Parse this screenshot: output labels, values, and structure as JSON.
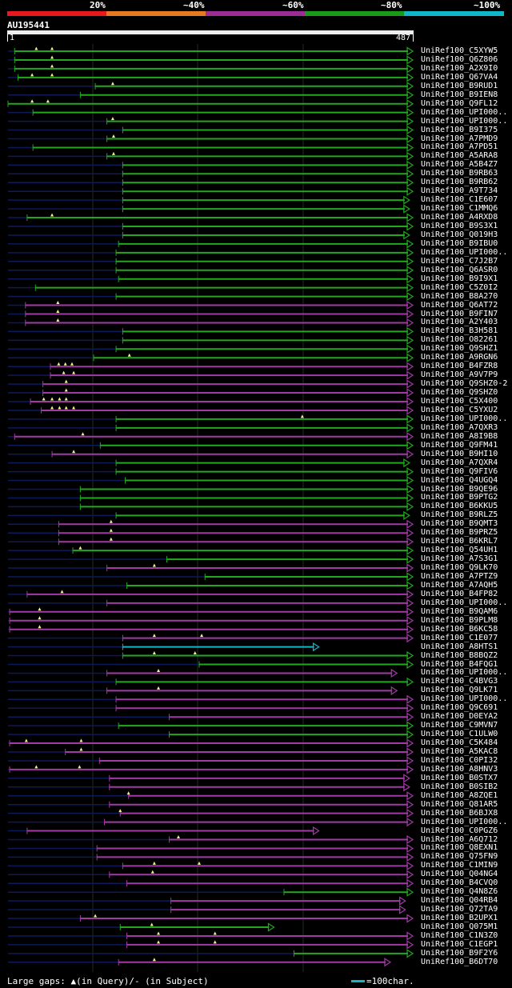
{
  "query": {
    "id": "AU195441",
    "start_label": "1",
    "end_label": "487",
    "length": 487
  },
  "identity_scale": [
    {
      "label": "20%",
      "color": "#e8191e"
    },
    {
      "label": "~40%",
      "color": "#e67a20"
    },
    {
      "label": "~60%",
      "color": "#9b2d95"
    },
    {
      "label": "~80%",
      "color": "#1a9a1a"
    },
    {
      "label": "~100%",
      "color": "#0fb8c8"
    }
  ],
  "footer": {
    "gaps_text": "Large gaps: ▲(in Query)/- (in Subject)",
    "legend_text": "=100char."
  },
  "chart_data": {
    "type": "alignment",
    "x_range": [
      1,
      487
    ],
    "rows": [
      {
        "id": "UniRef100_C5XYW5",
        "start": 9,
        "end": 487,
        "color": "green",
        "gaps": [
          35,
          54
        ]
      },
      {
        "id": "UniRef100_Q6Z806",
        "start": 9,
        "end": 487,
        "color": "green",
        "gaps": [
          54
        ]
      },
      {
        "id": "UniRef100_A2X9I0",
        "start": 9,
        "end": 487,
        "color": "green",
        "gaps": [
          54
        ]
      },
      {
        "id": "UniRef100_Q67VA4",
        "start": 13,
        "end": 487,
        "color": "green",
        "gaps": [
          30,
          54
        ]
      },
      {
        "id": "UniRef100_B9RUD1",
        "start": 106,
        "end": 487,
        "color": "green",
        "gaps": [
          127
        ]
      },
      {
        "id": "UniRef100_B9IEN8",
        "start": 88,
        "end": 487,
        "color": "green",
        "gaps": []
      },
      {
        "id": "UniRef100_Q9FL12",
        "start": 1,
        "end": 487,
        "color": "green",
        "gaps": [
          30,
          49
        ]
      },
      {
        "id": "UniRef100_UPI000..",
        "start": 31,
        "end": 487,
        "color": "green",
        "gaps": []
      },
      {
        "id": "UniRef100_UPI000..",
        "start": 120,
        "end": 487,
        "color": "green",
        "gaps": [
          127
        ]
      },
      {
        "id": "UniRef100_B9I375",
        "start": 139,
        "end": 487,
        "color": "green",
        "gaps": []
      },
      {
        "id": "UniRef100_A7PMD9",
        "start": 120,
        "end": 487,
        "color": "green",
        "gaps": [
          128
        ]
      },
      {
        "id": "UniRef100_A7PD51",
        "start": 31,
        "end": 487,
        "color": "green",
        "gaps": []
      },
      {
        "id": "UniRef100_A5ARA8",
        "start": 120,
        "end": 487,
        "color": "green",
        "gaps": [
          128
        ]
      },
      {
        "id": "UniRef100_A5B4Z7",
        "start": 139,
        "end": 487,
        "color": "green",
        "gaps": []
      },
      {
        "id": "UniRef100_B9RB63",
        "start": 139,
        "end": 487,
        "color": "green",
        "gaps": []
      },
      {
        "id": "UniRef100_B9RB62",
        "start": 139,
        "end": 487,
        "color": "green",
        "gaps": []
      },
      {
        "id": "UniRef100_A9T734",
        "start": 139,
        "end": 487,
        "color": "green",
        "gaps": []
      },
      {
        "id": "UniRef100_C1E607",
        "start": 139,
        "end": 483,
        "color": "green",
        "gaps": []
      },
      {
        "id": "UniRef100_C1MMQ6",
        "start": 139,
        "end": 483,
        "color": "green",
        "gaps": []
      },
      {
        "id": "UniRef100_A4RXD8",
        "start": 24,
        "end": 487,
        "color": "green",
        "gaps": [
          54
        ]
      },
      {
        "id": "UniRef100_B9S3X1",
        "start": 139,
        "end": 487,
        "color": "green",
        "gaps": []
      },
      {
        "id": "UniRef100_Q019H3",
        "start": 139,
        "end": 483,
        "color": "green",
        "gaps": []
      },
      {
        "id": "UniRef100_B9IBU0",
        "start": 134,
        "end": 487,
        "color": "green",
        "gaps": []
      },
      {
        "id": "UniRef100_UPI000..",
        "start": 131,
        "end": 487,
        "color": "green",
        "gaps": []
      },
      {
        "id": "UniRef100_C7J2B7",
        "start": 131,
        "end": 487,
        "color": "green",
        "gaps": []
      },
      {
        "id": "UniRef100_Q6ASR0",
        "start": 131,
        "end": 487,
        "color": "green",
        "gaps": []
      },
      {
        "id": "UniRef100_B9I9X1",
        "start": 134,
        "end": 487,
        "color": "green",
        "gaps": []
      },
      {
        "id": "UniRef100_C5Z0I2",
        "start": 34,
        "end": 487,
        "color": "green",
        "gaps": []
      },
      {
        "id": "UniRef100_B8A270",
        "start": 131,
        "end": 487,
        "color": "green",
        "gaps": []
      },
      {
        "id": "UniRef100_Q6AT72",
        "start": 22,
        "end": 487,
        "color": "purple",
        "gaps": [
          61
        ]
      },
      {
        "id": "UniRef100_B9FIN7",
        "start": 22,
        "end": 487,
        "color": "purple",
        "gaps": [
          61
        ]
      },
      {
        "id": "UniRef100_A2Y403",
        "start": 22,
        "end": 487,
        "color": "purple",
        "gaps": [
          61
        ]
      },
      {
        "id": "UniRef100_B3H581",
        "start": 139,
        "end": 487,
        "color": "green",
        "gaps": []
      },
      {
        "id": "UniRef100_O82261",
        "start": 139,
        "end": 487,
        "color": "green",
        "gaps": []
      },
      {
        "id": "UniRef100_Q9SHZ1",
        "start": 131,
        "end": 487,
        "color": "green",
        "gaps": []
      },
      {
        "id": "UniRef100_A9RGN6",
        "start": 104,
        "end": 487,
        "color": "green",
        "gaps": [
          147
        ]
      },
      {
        "id": "UniRef100_B4FZR8",
        "start": 52,
        "end": 487,
        "color": "purple",
        "gaps": [
          62,
          70,
          78
        ]
      },
      {
        "id": "UniRef100_A9V7P9",
        "start": 52,
        "end": 487,
        "color": "purple",
        "gaps": [
          68,
          80
        ]
      },
      {
        "id": "UniRef100_Q9SHZ0-2",
        "start": 43,
        "end": 487,
        "color": "purple",
        "gaps": [
          71
        ]
      },
      {
        "id": "UniRef100_Q9SHZ0",
        "start": 43,
        "end": 487,
        "color": "purple",
        "gaps": [
          71
        ]
      },
      {
        "id": "UniRef100_C5X400",
        "start": 28,
        "end": 487,
        "color": "purple",
        "gaps": [
          44,
          54,
          63,
          71
        ]
      },
      {
        "id": "UniRef100_C5YXU2",
        "start": 41,
        "end": 487,
        "color": "purple",
        "gaps": [
          54,
          63,
          71,
          80
        ]
      },
      {
        "id": "UniRef100_UPI000..",
        "start": 131,
        "end": 487,
        "color": "green",
        "gaps": [
          355
        ]
      },
      {
        "id": "UniRef100_A7QXR3",
        "start": 131,
        "end": 487,
        "color": "green",
        "gaps": []
      },
      {
        "id": "UniRef100_A8I9B8",
        "start": 9,
        "end": 487,
        "color": "purple",
        "gaps": [
          91
        ]
      },
      {
        "id": "UniRef100_Q9FM41",
        "start": 112,
        "end": 487,
        "color": "green",
        "gaps": []
      },
      {
        "id": "UniRef100_B9HI10",
        "start": 54,
        "end": 487,
        "color": "purple",
        "gaps": [
          80
        ]
      },
      {
        "id": "UniRef100_A7QXR4",
        "start": 131,
        "end": 483,
        "color": "green",
        "gaps": []
      },
      {
        "id": "UniRef100_Q9FIV6",
        "start": 131,
        "end": 487,
        "color": "green",
        "gaps": []
      },
      {
        "id": "UniRef100_Q4UGQ4",
        "start": 142,
        "end": 487,
        "color": "green",
        "gaps": []
      },
      {
        "id": "UniRef100_B9QE96",
        "start": 88,
        "end": 487,
        "color": "green",
        "gaps": []
      },
      {
        "id": "UniRef100_B9PTG2",
        "start": 88,
        "end": 487,
        "color": "green",
        "gaps": []
      },
      {
        "id": "UniRef100_B6KKU5",
        "start": 88,
        "end": 487,
        "color": "green",
        "gaps": []
      },
      {
        "id": "UniRef100_B9RLZ5",
        "start": 131,
        "end": 483,
        "color": "green",
        "gaps": []
      },
      {
        "id": "UniRef100_B9QMT3",
        "start": 62,
        "end": 487,
        "color": "purple",
        "gaps": [
          125
        ]
      },
      {
        "id": "UniRef100_B9PRZ5",
        "start": 62,
        "end": 487,
        "color": "purple",
        "gaps": [
          125
        ]
      },
      {
        "id": "UniRef100_B6KRL7",
        "start": 62,
        "end": 487,
        "color": "purple",
        "gaps": [
          125
        ]
      },
      {
        "id": "UniRef100_Q54UH1",
        "start": 79,
        "end": 487,
        "color": "green",
        "gaps": [
          88
        ]
      },
      {
        "id": "UniRef100_A7S3G1",
        "start": 192,
        "end": 487,
        "color": "green",
        "gaps": []
      },
      {
        "id": "UniRef100_Q9LK70",
        "start": 120,
        "end": 487,
        "color": "purple",
        "gaps": [
          177
        ]
      },
      {
        "id": "UniRef100_A7PTZ9",
        "start": 238,
        "end": 487,
        "color": "green",
        "gaps": []
      },
      {
        "id": "UniRef100_A7AQH5",
        "start": 144,
        "end": 487,
        "color": "green",
        "gaps": []
      },
      {
        "id": "UniRef100_B4FP82",
        "start": 24,
        "end": 487,
        "color": "purple",
        "gaps": [
          66
        ]
      },
      {
        "id": "UniRef100_UPI000..",
        "start": 120,
        "end": 487,
        "color": "purple",
        "gaps": []
      },
      {
        "id": "UniRef100_B9QAM6",
        "start": 3,
        "end": 487,
        "color": "purple",
        "gaps": [
          39
        ]
      },
      {
        "id": "UniRef100_B9PLM8",
        "start": 3,
        "end": 487,
        "color": "purple",
        "gaps": [
          39
        ]
      },
      {
        "id": "UniRef100_B6KC58",
        "start": 3,
        "end": 487,
        "color": "purple",
        "gaps": [
          39
        ]
      },
      {
        "id": "UniRef100_C1E077",
        "start": 139,
        "end": 487,
        "color": "purple",
        "gaps": [
          177,
          234
        ]
      },
      {
        "id": "UniRef100_A8HTS1",
        "start": 139,
        "end": 374,
        "color": "cyan",
        "gaps": []
      },
      {
        "id": "UniRef100_B8BQZ2",
        "start": 139,
        "end": 487,
        "color": "green",
        "gaps": [
          177,
          226
        ]
      },
      {
        "id": "UniRef100_B4FQG1",
        "start": 231,
        "end": 487,
        "color": "green",
        "gaps": []
      },
      {
        "id": "UniRef100_UPI000..",
        "start": 120,
        "end": 468,
        "color": "purple",
        "gaps": [
          182
        ]
      },
      {
        "id": "UniRef100_C4BVG3",
        "start": 131,
        "end": 487,
        "color": "green",
        "gaps": []
      },
      {
        "id": "UniRef100_Q9LK71",
        "start": 120,
        "end": 468,
        "color": "purple",
        "gaps": [
          182
        ]
      },
      {
        "id": "UniRef100_UPI000..",
        "start": 131,
        "end": 487,
        "color": "purple",
        "gaps": []
      },
      {
        "id": "UniRef100_Q9C691",
        "start": 131,
        "end": 487,
        "color": "purple",
        "gaps": []
      },
      {
        "id": "UniRef100_D0EYA2",
        "start": 195,
        "end": 487,
        "color": "purple",
        "gaps": []
      },
      {
        "id": "UniRef100_C9MVN7",
        "start": 134,
        "end": 487,
        "color": "green",
        "gaps": []
      },
      {
        "id": "UniRef100_C1ULW0",
        "start": 195,
        "end": 487,
        "color": "green",
        "gaps": []
      },
      {
        "id": "UniRef100_C5K484",
        "start": 3,
        "end": 487,
        "color": "purple",
        "gaps": [
          23,
          89
        ]
      },
      {
        "id": "UniRef100_A5KAC8",
        "start": 70,
        "end": 487,
        "color": "purple",
        "gaps": [
          89
        ]
      },
      {
        "id": "UniRef100_C0PI32",
        "start": 111,
        "end": 487,
        "color": "purple",
        "gaps": []
      },
      {
        "id": "UniRef100_A8HNV3",
        "start": 3,
        "end": 487,
        "color": "purple",
        "gaps": [
          35,
          87
        ]
      },
      {
        "id": "UniRef100_B0STX7",
        "start": 123,
        "end": 483,
        "color": "purple",
        "gaps": []
      },
      {
        "id": "UniRef100_B0SIB2",
        "start": 123,
        "end": 483,
        "color": "purple",
        "gaps": []
      },
      {
        "id": "UniRef100_A8ZQE1",
        "start": 146,
        "end": 487,
        "color": "purple",
        "gaps": [
          146
        ]
      },
      {
        "id": "UniRef100_Q81AR5",
        "start": 123,
        "end": 487,
        "color": "purple",
        "gaps": []
      },
      {
        "id": "UniRef100_B6BJX8",
        "start": 136,
        "end": 487,
        "color": "purple",
        "gaps": [
          136
        ]
      },
      {
        "id": "UniRef100_UPI000..",
        "start": 117,
        "end": 487,
        "color": "purple",
        "gaps": []
      },
      {
        "id": "UniRef100_C0PGZ6",
        "start": 24,
        "end": 374,
        "color": "purple",
        "gaps": []
      },
      {
        "id": "UniRef100_A6Q712",
        "start": 195,
        "end": 487,
        "color": "purple",
        "gaps": [
          206
        ]
      },
      {
        "id": "UniRef100_Q8EXN1",
        "start": 108,
        "end": 487,
        "color": "purple",
        "gaps": []
      },
      {
        "id": "UniRef100_Q75FN9",
        "start": 108,
        "end": 487,
        "color": "purple",
        "gaps": []
      },
      {
        "id": "UniRef100_C1MIN9",
        "start": 139,
        "end": 487,
        "color": "purple",
        "gaps": [
          177,
          231
        ]
      },
      {
        "id": "UniRef100_Q04NG4",
        "start": 123,
        "end": 487,
        "color": "purple",
        "gaps": [
          175
        ]
      },
      {
        "id": "UniRef100_B4CVQ0",
        "start": 144,
        "end": 487,
        "color": "purple",
        "gaps": []
      },
      {
        "id": "UniRef100_Q4N8Z6",
        "start": 333,
        "end": 487,
        "color": "green",
        "gaps": []
      },
      {
        "id": "UniRef100_Q04RB4",
        "start": 197,
        "end": 478,
        "color": "purple",
        "gaps": []
      },
      {
        "id": "UniRef100_Q72TA9",
        "start": 197,
        "end": 478,
        "color": "purple",
        "gaps": []
      },
      {
        "id": "UniRef100_B2UPX1",
        "start": 88,
        "end": 487,
        "color": "purple",
        "gaps": [
          106
        ]
      },
      {
        "id": "UniRef100_Q075M1",
        "start": 136,
        "end": 320,
        "color": "green",
        "gaps": [
          174
        ]
      },
      {
        "id": "UniRef100_C1N3Z0",
        "start": 144,
        "end": 487,
        "color": "purple",
        "gaps": [
          182,
          250
        ]
      },
      {
        "id": "UniRef100_C1EGP1",
        "start": 144,
        "end": 487,
        "color": "purple",
        "gaps": [
          182,
          250
        ]
      },
      {
        "id": "UniRef100_B9F2Y6",
        "start": 345,
        "end": 487,
        "color": "green",
        "gaps": []
      },
      {
        "id": "UniRef100_B6DT70",
        "start": 134,
        "end": 460,
        "color": "purple",
        "gaps": [
          177
        ]
      }
    ]
  }
}
